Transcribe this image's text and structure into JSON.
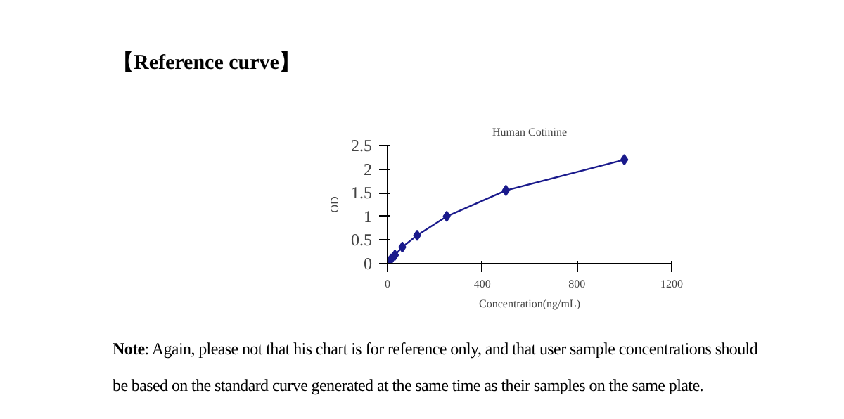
{
  "chart_data": {
    "type": "line",
    "title": "【Reference curve】",
    "subtitle": "Human Cotinine",
    "xlabel": "Concentration(ng/mL)",
    "ylabel": "OD",
    "x": [
      0,
      15.6,
      31.25,
      62.5,
      125,
      250,
      500,
      1000
    ],
    "series": [
      {
        "color": "#1a1a8c",
        "values": [
          0.05,
          0.1,
          0.18,
          0.35,
          0.6,
          1.0,
          1.55,
          2.2
        ]
      }
    ],
    "xlim": [
      0,
      1200
    ],
    "xticks": [
      0,
      400,
      800,
      1200
    ],
    "ylim": [
      0,
      2.5
    ],
    "yticks": [
      0,
      0.5,
      1,
      1.5,
      2,
      2.5
    ],
    "grid": false,
    "marker": "diamond",
    "line_style": "solid",
    "annotations": [
      "Note: Again, please not that his chart is for reference only, and that user sample concentrations should be based on the standard curve generated at the same time as their samples on the same plate."
    ]
  }
}
